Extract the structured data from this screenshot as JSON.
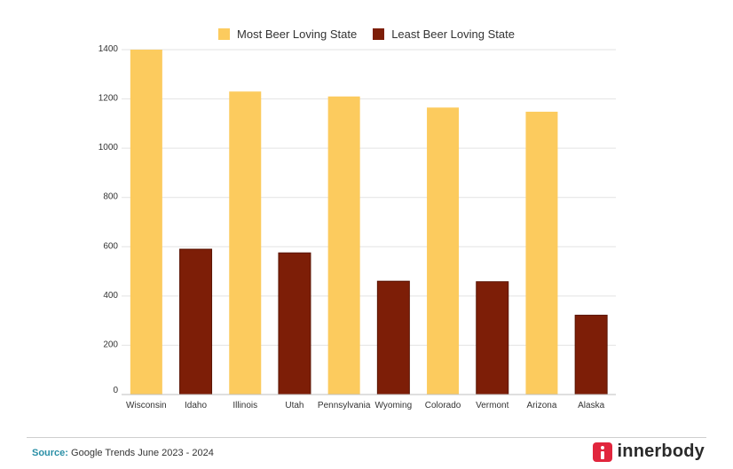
{
  "chart_data": {
    "type": "bar",
    "title": "",
    "xlabel": "",
    "ylabel": "",
    "ylim": [
      0,
      1400
    ],
    "yticks": [
      0,
      200,
      400,
      600,
      800,
      1000,
      1200,
      1400
    ],
    "categories": [
      "Wisconsin",
      "Idaho",
      "Illinois",
      "Utah",
      "Pennsylvania",
      "Wyoming",
      "Colorado",
      "Vermont",
      "Arizona",
      "Alaska"
    ],
    "values": [
      1400,
      590,
      1230,
      575,
      1210,
      460,
      1165,
      458,
      1148,
      322
    ],
    "series_of": [
      "most",
      "least",
      "most",
      "least",
      "most",
      "least",
      "most",
      "least",
      "most",
      "least"
    ],
    "legend": [
      {
        "key": "most",
        "name": "Most Beer Loving State",
        "color": "#fccb5e"
      },
      {
        "key": "least",
        "name": "Least Beer Loving State",
        "color": "#7d1e07"
      }
    ],
    "grid": true,
    "legend_position": "top-center"
  },
  "footer": {
    "source_label": "Source:",
    "source_text": "Google Trends June 2023 - 2024",
    "brand": "innerbody",
    "brand_icon": "info-i-icon"
  }
}
